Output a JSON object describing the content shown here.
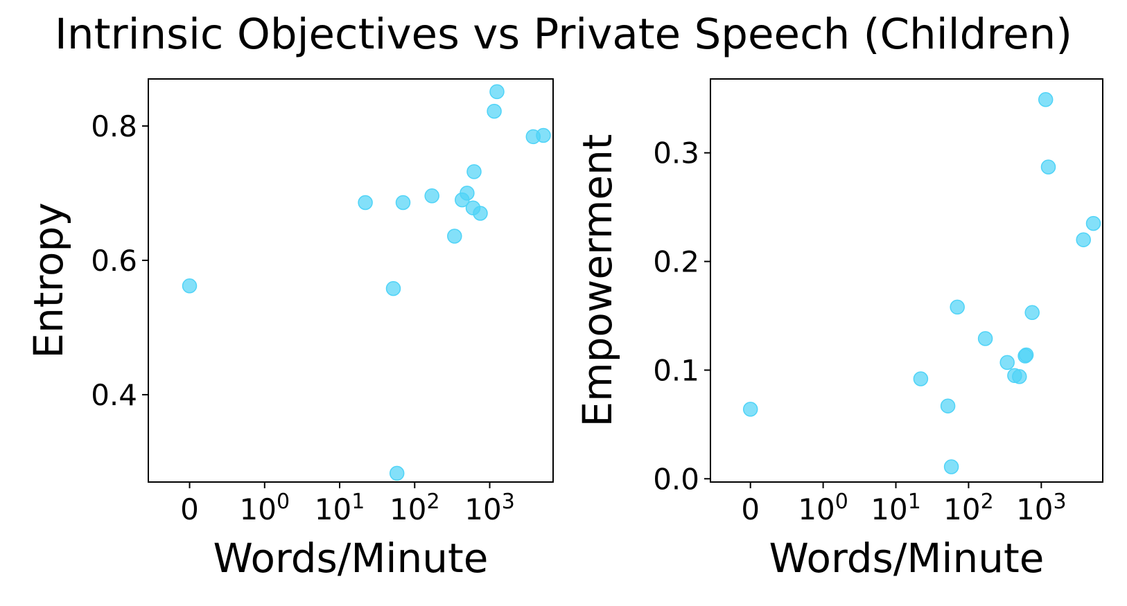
{
  "title": "Intrinsic Objectives vs Private Speech (Children)",
  "chart_data": [
    {
      "type": "scatter",
      "xscale": "symlog",
      "xlabel": "Words/Minute",
      "ylabel": "Entropy",
      "xticks": [
        {
          "value": 0,
          "main": "0",
          "sup": ""
        },
        {
          "value": 1,
          "main": "10",
          "sup": "0"
        },
        {
          "value": 10,
          "main": "10",
          "sup": "1"
        },
        {
          "value": 100,
          "main": "10",
          "sup": "2"
        },
        {
          "value": 1000,
          "main": "10",
          "sup": "3"
        }
      ],
      "yticks": [
        0.4,
        0.6,
        0.8
      ],
      "ylim": [
        0.27,
        0.87
      ],
      "grid": false,
      "marker_color": "#4fd3f7",
      "points": [
        {
          "x": 0,
          "y": 0.562
        },
        {
          "x": 22,
          "y": 0.686
        },
        {
          "x": 52,
          "y": 0.558
        },
        {
          "x": 58,
          "y": 0.283
        },
        {
          "x": 70,
          "y": 0.686
        },
        {
          "x": 170,
          "y": 0.696
        },
        {
          "x": 340,
          "y": 0.636
        },
        {
          "x": 430,
          "y": 0.69
        },
        {
          "x": 500,
          "y": 0.7
        },
        {
          "x": 600,
          "y": 0.678
        },
        {
          "x": 620,
          "y": 0.732
        },
        {
          "x": 750,
          "y": 0.67
        },
        {
          "x": 1150,
          "y": 0.822
        },
        {
          "x": 1250,
          "y": 0.851
        },
        {
          "x": 3800,
          "y": 0.784
        },
        {
          "x": 5200,
          "y": 0.786
        }
      ]
    },
    {
      "type": "scatter",
      "xscale": "symlog",
      "xlabel": "Words/Minute",
      "ylabel": "Empowerment",
      "xticks": [
        {
          "value": 0,
          "main": "0",
          "sup": ""
        },
        {
          "value": 1,
          "main": "10",
          "sup": "0"
        },
        {
          "value": 10,
          "main": "10",
          "sup": "1"
        },
        {
          "value": 100,
          "main": "10",
          "sup": "2"
        },
        {
          "value": 1000,
          "main": "10",
          "sup": "3"
        }
      ],
      "yticks": [
        0.0,
        0.1,
        0.2,
        0.3
      ],
      "ylim": [
        -0.003,
        0.368
      ],
      "grid": false,
      "marker_color": "#4fd3f7",
      "points": [
        {
          "x": 0,
          "y": 0.064
        },
        {
          "x": 22,
          "y": 0.092
        },
        {
          "x": 52,
          "y": 0.067
        },
        {
          "x": 58,
          "y": 0.011
        },
        {
          "x": 70,
          "y": 0.158
        },
        {
          "x": 170,
          "y": 0.129
        },
        {
          "x": 340,
          "y": 0.107
        },
        {
          "x": 430,
          "y": 0.095
        },
        {
          "x": 500,
          "y": 0.094
        },
        {
          "x": 600,
          "y": 0.113
        },
        {
          "x": 620,
          "y": 0.114
        },
        {
          "x": 750,
          "y": 0.153
        },
        {
          "x": 1150,
          "y": 0.349
        },
        {
          "x": 1250,
          "y": 0.287
        },
        {
          "x": 3800,
          "y": 0.22
        },
        {
          "x": 5200,
          "y": 0.235
        }
      ]
    }
  ]
}
